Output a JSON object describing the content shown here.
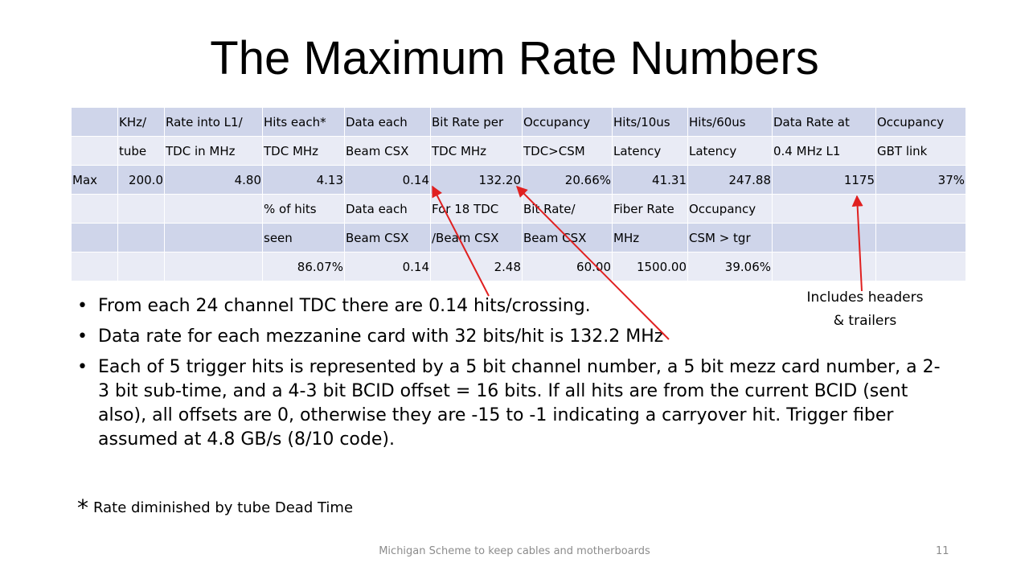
{
  "title": "The Maximum Rate Numbers",
  "table": {
    "rows": [
      [
        "",
        "KHz/",
        "Rate into L1/",
        "Hits each*",
        "Data each",
        "Bit Rate per",
        "Occupancy",
        "Hits/10us",
        "Hits/60us",
        "Data Rate at",
        "Occupancy"
      ],
      [
        "",
        "tube",
        "TDC in MHz",
        "TDC MHz",
        "Beam CSX",
        "TDC MHz",
        "TDC>CSM",
        "Latency",
        "Latency",
        "0.4 MHz L1",
        "GBT link"
      ],
      [
        "Max",
        "200.0",
        "4.80",
        "4.13",
        "0.14",
        "132.20",
        "20.66%",
        "41.31",
        "247.88",
        "1175",
        "37%"
      ],
      [
        "",
        "",
        "",
        "% of hits",
        "Data each",
        "For 18 TDC",
        "Bit Rate/",
        "Fiber Rate",
        "Occupancy",
        "",
        ""
      ],
      [
        "",
        "",
        "",
        "seen",
        "Beam CSX",
        "/Beam CSX",
        "Beam CSX",
        "MHz",
        "CSM > tgr",
        "",
        ""
      ],
      [
        "",
        "",
        "",
        "86.07%",
        "0.14",
        "2.48",
        "60.00",
        "1500.00",
        "39.06%",
        "",
        ""
      ]
    ],
    "numeric_rows": [
      2,
      5
    ]
  },
  "bullets": [
    "From each 24 channel TDC there are 0.14 hits/crossing.",
    "Data rate for each mezzanine card with 32 bits/hit is 132.2 MHz",
    "Each of 5 trigger hits is represented by a 5 bit channel number, a 5 bit mezz card number, a 2-3 bit sub-time, and a 4-3 bit BCID offset = 16 bits. If all hits are from the current BCID (sent also), all offsets are 0, otherwise they are -15 to -1 indicating a carryover hit. Trigger fiber assumed at 4.8 GB/s (8/10 code)."
  ],
  "bullet_glyph": "•",
  "footnote": {
    "star": "*",
    "text": "Rate diminished by tube Dead Time"
  },
  "callout": {
    "line1": "Includes headers",
    "line2": "& trailers"
  },
  "footer": "Michigan Scheme to keep cables and motherboards",
  "page_number": "11",
  "colors": {
    "cell_light": "#e9ebf5",
    "cell_dark": "#cfd5ea",
    "arrow": "#e02020",
    "footer": "#8c8c8c"
  }
}
